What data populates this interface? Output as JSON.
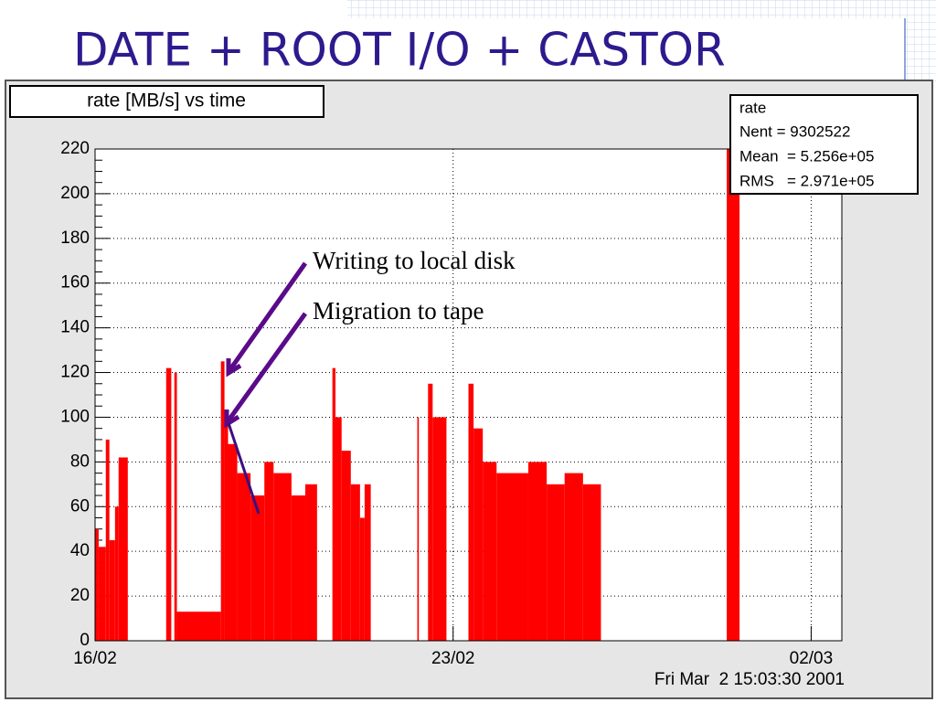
{
  "slide_title": "DATE + ROOT I/O + CASTOR",
  "chart_data": {
    "type": "histogram",
    "title": "rate [MB/s] vs time",
    "stats": {
      "title": "rate",
      "lines": [
        "Nent = 9302522",
        "Mean  = 5.256e+05",
        "RMS   = 2.971e+05"
      ]
    },
    "annotations": [
      "Writing to local disk",
      "Migration to tape"
    ],
    "timestamp": "Fri Mar  2 15:03:30 2001",
    "color": "#ff0000",
    "bins": [
      0,
      0.07,
      0.21,
      0.28,
      0.39,
      0.46,
      0.64,
      1.39,
      1.49,
      1.55,
      1.6,
      2.46,
      2.53,
      2.6,
      2.78,
      3.04,
      3.31,
      3.49,
      3.84,
      4.11,
      4.34,
      4.64,
      4.7,
      4.82,
      5.0,
      5.18,
      5.27,
      5.39,
      6.3,
      6.33,
      6.51,
      6.6,
      6.87,
      7.3,
      7.4,
      7.58,
      7.85,
      8.47,
      8.83,
      9.18,
      9.54,
      9.89,
      12.35,
      12.6,
      14.52
    ],
    "counts": [
      50,
      42,
      90,
      45,
      60,
      82,
      0,
      122,
      0,
      120,
      13,
      125,
      100,
      88,
      75,
      65,
      80,
      75,
      65,
      70,
      0,
      122,
      100,
      85,
      70,
      55,
      70,
      0,
      100,
      0,
      115,
      100,
      0,
      115,
      95,
      80,
      75,
      80,
      70,
      75,
      70,
      0,
      220,
      0
    ],
    "xlim": [
      0,
      14.6
    ],
    "xticks": [
      {
        "value": 0,
        "label": "16/02"
      },
      {
        "value": 7,
        "label": "23/02"
      },
      {
        "value": 14,
        "label": "02/03"
      }
    ],
    "ylim": [
      0,
      220
    ],
    "yticks": [
      0,
      20,
      40,
      60,
      80,
      100,
      120,
      140,
      160,
      180,
      200,
      220
    ],
    "grid": true
  }
}
